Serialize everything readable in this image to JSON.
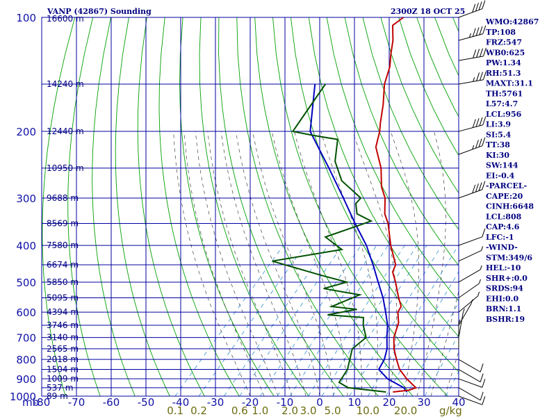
{
  "title": "VANP (42867) Sounding",
  "datetime": "2300Z 18 OCT 25",
  "colors": {
    "grid": "#0000a0",
    "dry_adiabat": "#00a000",
    "moist_adiabat": "#404040",
    "mixing_ratio": "#3090d0",
    "temperature": "#c00000",
    "dewpoint": "#005000",
    "parcel": "#0000c0",
    "wind": "#000000"
  },
  "chart_data": {
    "type": "skew-t",
    "pressure_unit_label": "mb",
    "pressure_range": [
      100,
      1000
    ],
    "temperature_range": [
      -80,
      40
    ],
    "pressure_ticks": [
      {
        "p": 100,
        "label": "100"
      },
      {
        "p": 200,
        "label": "200"
      },
      {
        "p": 300,
        "label": "300"
      },
      {
        "p": 400,
        "label": "400"
      },
      {
        "p": 500,
        "label": "500"
      },
      {
        "p": 600,
        "label": "600"
      },
      {
        "p": 700,
        "label": "700"
      },
      {
        "p": 800,
        "label": "800"
      },
      {
        "p": 900,
        "label": "900"
      },
      {
        "p": 1000,
        "label": "1000"
      }
    ],
    "height_labels": [
      {
        "p": 100,
        "label": "16600 m"
      },
      {
        "p": 150,
        "label": "14240 m"
      },
      {
        "p": 200,
        "label": "12440 m"
      },
      {
        "p": 250,
        "label": "10950 m"
      },
      {
        "p": 300,
        "label": "9688 m"
      },
      {
        "p": 350,
        "label": "8569 m"
      },
      {
        "p": 400,
        "label": "7580 m"
      },
      {
        "p": 450,
        "label": "6674 m"
      },
      {
        "p": 500,
        "label": "5850 m"
      },
      {
        "p": 550,
        "label": "5095 m"
      },
      {
        "p": 600,
        "label": "4394 m"
      },
      {
        "p": 650,
        "label": "3746 m"
      },
      {
        "p": 700,
        "label": "3140 m"
      },
      {
        "p": 750,
        "label": "2565 m"
      },
      {
        "p": 800,
        "label": "2018 m"
      },
      {
        "p": 850,
        "label": "1504 m"
      },
      {
        "p": 900,
        "label": "1009 m"
      },
      {
        "p": 950,
        "label": "537 m"
      },
      {
        "p": 1000,
        "label": "89 m"
      }
    ],
    "temperature_ticks": [
      "-80",
      "-70",
      "-60",
      "-50",
      "-40",
      "-30",
      "-20",
      "-10",
      "0",
      "10",
      "20",
      "30",
      "40"
    ],
    "mixing_ratio_labels": [
      {
        "w": 0.1,
        "label": "0.1"
      },
      {
        "w": 0.2,
        "label": "0.2"
      },
      {
        "w": 0.6,
        "label": "0.6"
      },
      {
        "w": 1.0,
        "label": "1.0"
      },
      {
        "w": 2.0,
        "label": "2.0"
      },
      {
        "w": 3.0,
        "label": "3.0"
      },
      {
        "w": 5.0,
        "label": "5.0"
      },
      {
        "w": 10.0,
        "label": "10.0"
      },
      {
        "w": 20.0,
        "label": "20.0"
      }
    ],
    "mixing_ratio_unit": "g/kg",
    "temperature_profile": [
      {
        "p": 100,
        "t": -75
      },
      {
        "p": 105,
        "t": -76
      },
      {
        "p": 115,
        "t": -72
      },
      {
        "p": 125,
        "t": -69
      },
      {
        "p": 135,
        "t": -66
      },
      {
        "p": 150,
        "t": -63
      },
      {
        "p": 170,
        "t": -58
      },
      {
        "p": 190,
        "t": -54
      },
      {
        "p": 200,
        "t": -52
      },
      {
        "p": 220,
        "t": -49
      },
      {
        "p": 250,
        "t": -42
      },
      {
        "p": 280,
        "t": -37
      },
      {
        "p": 300,
        "t": -33
      },
      {
        "p": 330,
        "t": -29
      },
      {
        "p": 350,
        "t": -25.5
      },
      {
        "p": 400,
        "t": -19
      },
      {
        "p": 450,
        "t": -12.5
      },
      {
        "p": 470,
        "t": -11.5
      },
      {
        "p": 500,
        "t": -8
      },
      {
        "p": 550,
        "t": -3
      },
      {
        "p": 580,
        "t": 0
      },
      {
        "p": 600,
        "t": 0.5
      },
      {
        "p": 640,
        "t": 3.5
      },
      {
        "p": 700,
        "t": 6
      },
      {
        "p": 750,
        "t": 9
      },
      {
        "p": 800,
        "t": 12.5
      },
      {
        "p": 850,
        "t": 16
      },
      {
        "p": 900,
        "t": 20.5
      },
      {
        "p": 950,
        "t": 25.5
      },
      {
        "p": 965,
        "t": 24
      },
      {
        "p": 970,
        "t": 22
      },
      {
        "p": 975,
        "t": 20
      }
    ],
    "dewpoint_profile": [
      {
        "p": 150,
        "t": -80
      },
      {
        "p": 165,
        "t": -79
      },
      {
        "p": 200,
        "t": -77
      },
      {
        "p": 205,
        "t": -70
      },
      {
        "p": 210,
        "t": -62
      },
      {
        "p": 240,
        "t": -57
      },
      {
        "p": 270,
        "t": -50
      },
      {
        "p": 300,
        "t": -40
      },
      {
        "p": 310,
        "t": -40
      },
      {
        "p": 330,
        "t": -37
      },
      {
        "p": 345,
        "t": -31
      },
      {
        "p": 380,
        "t": -40
      },
      {
        "p": 410,
        "t": -32
      },
      {
        "p": 440,
        "t": -49
      },
      {
        "p": 480,
        "t": -31
      },
      {
        "p": 500,
        "t": -22
      },
      {
        "p": 520,
        "t": -27
      },
      {
        "p": 540,
        "t": -15
      },
      {
        "p": 580,
        "t": -20
      },
      {
        "p": 590,
        "t": -12
      },
      {
        "p": 610,
        "t": -19
      },
      {
        "p": 620,
        "t": -8
      },
      {
        "p": 650,
        "t": -6
      },
      {
        "p": 700,
        "t": -2
      },
      {
        "p": 750,
        "t": -3
      },
      {
        "p": 850,
        "t": 1
      },
      {
        "p": 920,
        "t": 2
      },
      {
        "p": 950,
        "t": 6
      },
      {
        "p": 975,
        "t": 18
      }
    ],
    "parcel_profile": [
      {
        "p": 150,
        "t": -83
      },
      {
        "p": 200,
        "t": -72
      },
      {
        "p": 250,
        "t": -57
      },
      {
        "p": 300,
        "t": -45
      },
      {
        "p": 350,
        "t": -35
      },
      {
        "p": 400,
        "t": -26
      },
      {
        "p": 450,
        "t": -19
      },
      {
        "p": 500,
        "t": -13
      },
      {
        "p": 550,
        "t": -7.5
      },
      {
        "p": 600,
        "t": -3
      },
      {
        "p": 650,
        "t": 1
      },
      {
        "p": 700,
        "t": 4
      },
      {
        "p": 750,
        "t": 7
      },
      {
        "p": 800,
        "t": 9
      },
      {
        "p": 850,
        "t": 10
      },
      {
        "p": 900,
        "t": 15
      },
      {
        "p": 950,
        "t": 22
      },
      {
        "p": 975,
        "t": 24
      }
    ],
    "wind_profile": [
      {
        "p": 100,
        "dir": 250,
        "spd": 40
      },
      {
        "p": 115,
        "dir": 255,
        "spd": 45
      },
      {
        "p": 130,
        "dir": 260,
        "spd": 40
      },
      {
        "p": 150,
        "dir": 260,
        "spd": 35
      },
      {
        "p": 200,
        "dir": 255,
        "spd": 40
      },
      {
        "p": 230,
        "dir": 250,
        "spd": 35
      },
      {
        "p": 300,
        "dir": 250,
        "spd": 40
      },
      {
        "p": 400,
        "dir": 250,
        "spd": 10
      },
      {
        "p": 440,
        "dir": 245,
        "spd": 5
      },
      {
        "p": 500,
        "dir": 240,
        "spd": 5
      },
      {
        "p": 550,
        "dir": 235,
        "spd": 5
      },
      {
        "p": 600,
        "dir": 230,
        "spd": 5
      },
      {
        "p": 650,
        "dir": 210,
        "spd": 5
      },
      {
        "p": 700,
        "dir": 190,
        "spd": 5
      },
      {
        "p": 750,
        "dir": 180,
        "spd": 5
      },
      {
        "p": 800,
        "dir": 300,
        "spd": 10
      },
      {
        "p": 850,
        "dir": 300,
        "spd": 10
      },
      {
        "p": 900,
        "dir": 290,
        "spd": 10
      },
      {
        "p": 950,
        "dir": 300,
        "spd": 10
      },
      {
        "p": 1000,
        "dir": 290,
        "spd": 10
      }
    ]
  },
  "indices": [
    "WMO:42867",
    "TP:108",
    "FRZ:547",
    "WB0:625",
    "PW:1.34",
    "RH:51.3",
    "MAXT:31.1",
    "TH:5761",
    "L57:4.7",
    "LCL:956",
    "LI:3.9",
    "SI:5.4",
    "TT:38",
    "KI:30",
    "SW:144",
    "EI:-0.4",
    "-PARCEL-",
    "CAPE:20",
    "CINH:6648",
    "LCL:808",
    "CAP:4.6",
    "LFC:-1",
    "-WIND-",
    "STM:349/6",
    "HEL:-10",
    "SHR+:0.0",
    "SRDS:94",
    "EHI:0.0",
    "BRN:1.1",
    "BSHR:19"
  ]
}
